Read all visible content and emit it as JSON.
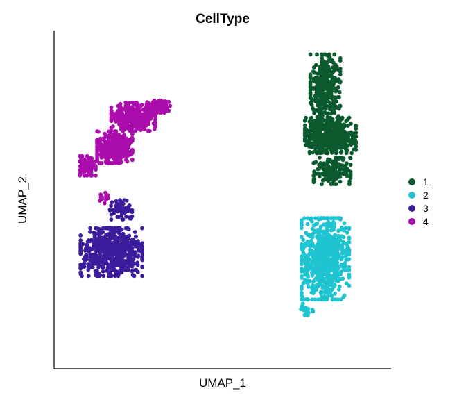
{
  "chart_data": {
    "type": "scatter",
    "title": "CellType",
    "xlabel": "UMAP_1",
    "ylabel": "UMAP_2",
    "xlim": [
      -10,
      10
    ],
    "ylim": [
      -10,
      10
    ],
    "grid": false,
    "legend_position": "right",
    "series": [
      {
        "name": "1",
        "color": "#0B5A2E",
        "clusters": [
          {
            "center": [
              6.1,
              6.6
            ],
            "spread": [
              0.85,
              1.9
            ],
            "n": 380
          },
          {
            "center": [
              6.4,
              3.8
            ],
            "spread": [
              1.45,
              1.0
            ],
            "n": 480
          },
          {
            "center": [
              6.5,
              1.7
            ],
            "spread": [
              1.05,
              0.75
            ],
            "n": 170
          }
        ]
      },
      {
        "name": "2",
        "color": "#1EC4CF",
        "clusters": [
          {
            "center": [
              6.1,
              -3.5
            ],
            "spread": [
              1.35,
              2.3
            ],
            "n": 720
          },
          {
            "center": [
              5.0,
              -6.6
            ],
            "spread": [
              0.35,
              0.45
            ],
            "n": 20
          }
        ]
      },
      {
        "name": "3",
        "color": "#3B1C9C",
        "clusters": [
          {
            "center": [
              -6.6,
              -3.1
            ],
            "spread": [
              1.75,
              1.35
            ],
            "n": 620
          },
          {
            "center": [
              -6.1,
              -0.6
            ],
            "spread": [
              0.7,
              0.55
            ],
            "n": 60
          }
        ]
      },
      {
        "name": "4",
        "color": "#AA0DAC",
        "clusters": [
          {
            "center": [
              -6.4,
              3.1
            ],
            "spread": [
              1.0,
              0.9
            ],
            "n": 320
          },
          {
            "center": [
              -5.3,
              4.9
            ],
            "spread": [
              1.25,
              0.8
            ],
            "n": 300
          },
          {
            "center": [
              -3.8,
              5.5
            ],
            "spread": [
              0.65,
              0.35
            ],
            "n": 90
          },
          {
            "center": [
              -8.0,
              2.0
            ],
            "spread": [
              0.45,
              0.55
            ],
            "n": 90
          },
          {
            "center": [
              -7.0,
              0.1
            ],
            "spread": [
              0.3,
              0.3
            ],
            "n": 15
          }
        ]
      }
    ]
  }
}
